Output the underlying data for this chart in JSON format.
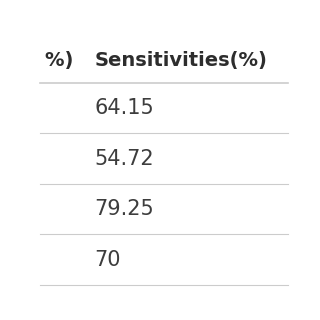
{
  "header": [
    "%) ",
    "Sensitivities(%)"
  ],
  "rows": [
    [
      "",
      "64.15"
    ],
    [
      "",
      "54.72"
    ],
    [
      "",
      "79.25"
    ],
    [
      "",
      "70"
    ]
  ],
  "background_color": "#ffffff",
  "header_text_color": "#2d2d2d",
  "cell_text_color": "#3d3d3d",
  "line_color": "#cccccc",
  "header_fontsize": 14,
  "cell_fontsize": 15,
  "header_fontweight": "bold"
}
